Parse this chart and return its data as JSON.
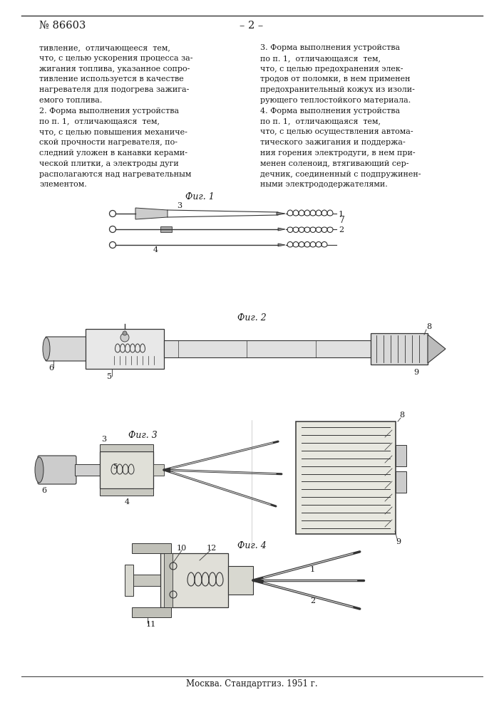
{
  "page_color": "#ffffff",
  "header_number": "№ 86603",
  "header_page": "– 2 –",
  "footer_text": "Москва. Стандартгиз. 1951 г.",
  "col1_lines": [
    "тивление,  отличающееся  тем,",
    "что, с целью ускорения процесса за-",
    "жигания топлива, указанное сопро-",
    "тивление используется в качестве",
    "нагревателя для подогрева зажига-",
    "емого топлива.",
    "2. Форма выполнения устройства",
    "по п. 1,  отличающаяся  тем,",
    "что, с целью повышения механиче-",
    "ской прочности нагревателя, по-",
    "следний уложен в канавки керами-",
    "ческой плитки, а электроды дуги",
    "располагаются над нагревательным",
    "элементом."
  ],
  "col2_lines": [
    "3. Форма выполнения устройства",
    "по п. 1,  отличающаяся  тем,",
    "что, с целью предохранения элек-",
    "тродов от поломки, в нем применен",
    "предохранительный кожух из изоли-",
    "рующего теплостойкого материала.",
    "4. Форма выполнения устройства",
    "по п. 1,  отличающаяся  тем,",
    "что, с целью осуществления автома-",
    "тического зажигания и поддержа-",
    "ния горения электродуги, в нем при-",
    "менен соленоид, втягивающий сер-",
    "дечник, соединенный с подпружинен-",
    "ными электрододержателями."
  ],
  "fig1_label": "Фиг. 1",
  "fig2_label": "Фиг. 2",
  "fig3_label": "Фиг. 3",
  "fig4_label": "Фиг. 4",
  "text_color": "#1a1a1a",
  "line_color": "#333333",
  "dark_color": "#444444",
  "gray1": "#aaaaaa",
  "gray2": "#cccccc",
  "gray3": "#888888"
}
